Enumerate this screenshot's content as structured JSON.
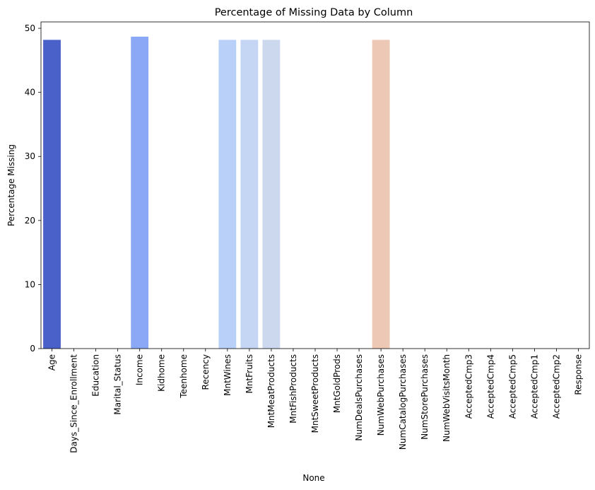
{
  "chart_data": {
    "type": "bar",
    "title": "Percentage of Missing Data by Column",
    "xlabel": "None",
    "ylabel": "Percentage Missing",
    "ylim": [
      0,
      51
    ],
    "yticks": [
      0,
      10,
      20,
      30,
      40,
      50
    ],
    "grid": false,
    "legend": "none",
    "categories": [
      "Age",
      "Days_Since_Enrollment",
      "Education",
      "Marital_Status",
      "Income",
      "Kidhome",
      "Teenhome",
      "Recency",
      "MntWines",
      "MntFruits",
      "MntMeatProducts",
      "MntFishProducts",
      "MntSweetProducts",
      "MntGoldProds",
      "NumDealsPurchases",
      "NumWebPurchases",
      "NumCatalogPurchases",
      "NumStorePurchases",
      "NumWebVisitsMonth",
      "AcceptedCmp3",
      "AcceptedCmp4",
      "AcceptedCmp5",
      "AcceptedCmp1",
      "AcceptedCmp2",
      "Response"
    ],
    "values": [
      48.2,
      0,
      0,
      0,
      48.7,
      0,
      0,
      0,
      48.2,
      48.2,
      48.2,
      0,
      0,
      0,
      0,
      48.2,
      0,
      0,
      0,
      0,
      0,
      0,
      0,
      0,
      0
    ],
    "colors": [
      "#4961c8",
      "#5f80e8",
      "#7193f0",
      "#7e9ff5",
      "#8aa8f5",
      "#97b3f9",
      "#a4bef9",
      "#afc7fa",
      "#b9d0f9",
      "#c4d6f4",
      "#ccd8ee",
      "#d4dbe6",
      "#dcdddd",
      "#e2d9d3",
      "#e7d3c9",
      "#ecc8b5",
      "#f2c0a4",
      "#f3b496",
      "#f4a888",
      "#f29b7a",
      "#ef8a6a",
      "#e97b5b",
      "#de6a4f",
      "#d45844",
      "#c8443a"
    ]
  }
}
